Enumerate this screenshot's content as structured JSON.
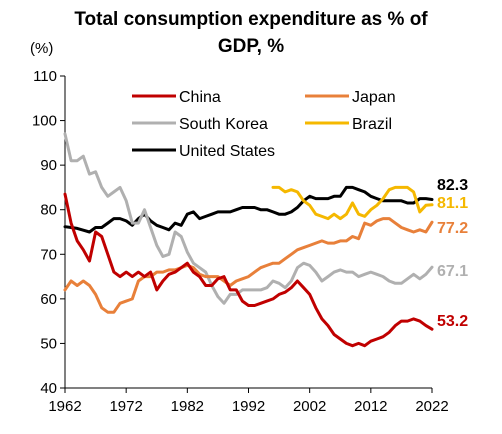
{
  "chart_data": {
    "type": "line",
    "title_lines": [
      "Total consumption expenditure as % of",
      "GDP, %"
    ],
    "ylabel": "(%)",
    "xlabel": "",
    "ylim": [
      40,
      110
    ],
    "xlim": [
      1962,
      2022
    ],
    "x_ticks": [
      "1962",
      "1972",
      "1982",
      "1992",
      "2002",
      "2012",
      "2022"
    ],
    "y_ticks": [
      "40",
      "50",
      "60",
      "70",
      "80",
      "90",
      "100",
      "110"
    ],
    "grid": false,
    "legend": {
      "placement": "top",
      "entries": [
        "China",
        "Japan",
        "South Korea",
        "Brazil",
        "United States"
      ]
    },
    "series": [
      {
        "name": "United States",
        "color": "#000000",
        "end_label": "82.3",
        "x": [
          1962,
          1963,
          1964,
          1965,
          1966,
          1967,
          1968,
          1969,
          1970,
          1971,
          1972,
          1973,
          1974,
          1975,
          1976,
          1977,
          1978,
          1979,
          1980,
          1981,
          1982,
          1983,
          1984,
          1985,
          1986,
          1987,
          1988,
          1989,
          1990,
          1991,
          1992,
          1993,
          1994,
          1995,
          1996,
          1997,
          1998,
          1999,
          2000,
          2001,
          2002,
          2003,
          2004,
          2005,
          2006,
          2007,
          2008,
          2009,
          2010,
          2011,
          2012,
          2013,
          2014,
          2015,
          2016,
          2017,
          2018,
          2019,
          2020,
          2021,
          2022
        ],
        "y": [
          76.2,
          76,
          75.8,
          75.4,
          75,
          76,
          76,
          77,
          78,
          78,
          77.5,
          76.5,
          78,
          79,
          77.5,
          76.5,
          76,
          75.5,
          77,
          76.5,
          79,
          79.5,
          78,
          78.5,
          79,
          79.5,
          79.5,
          79.5,
          80,
          80.5,
          80.5,
          80.5,
          80,
          80,
          79.5,
          79,
          79,
          79.5,
          80.5,
          82,
          83,
          82.5,
          82.5,
          82.5,
          83,
          83,
          85,
          85,
          84.5,
          84,
          83,
          82.5,
          82,
          82,
          82,
          82,
          81.5,
          81.5,
          82.5,
          82.5,
          82.3
        ]
      },
      {
        "name": "South Korea",
        "color": "#b0b0b0",
        "end_label": "67.1",
        "x": [
          1962,
          1963,
          1964,
          1965,
          1966,
          1967,
          1968,
          1969,
          1970,
          1971,
          1972,
          1973,
          1974,
          1975,
          1976,
          1977,
          1978,
          1979,
          1980,
          1981,
          1982,
          1983,
          1984,
          1985,
          1986,
          1987,
          1988,
          1989,
          1990,
          1991,
          1992,
          1993,
          1994,
          1995,
          1996,
          1997,
          1998,
          1999,
          2000,
          2001,
          2002,
          2003,
          2004,
          2005,
          2006,
          2007,
          2008,
          2009,
          2010,
          2011,
          2012,
          2013,
          2014,
          2015,
          2016,
          2017,
          2018,
          2019,
          2020,
          2021,
          2022
        ],
        "y": [
          97,
          91,
          91,
          92,
          88,
          88.5,
          85,
          83,
          84,
          85,
          82,
          77,
          77,
          80,
          76,
          72,
          69.5,
          70,
          75,
          74,
          70.5,
          68,
          67,
          66,
          63,
          60.5,
          59,
          61,
          61,
          62,
          62,
          62,
          62,
          62.5,
          64,
          63.5,
          62.5,
          64,
          67,
          68,
          67.5,
          66,
          64,
          65,
          66,
          66.5,
          66,
          66,
          65,
          65.5,
          66,
          65.5,
          65,
          64,
          63.5,
          63.5,
          64.5,
          65.5,
          64.5,
          65.5,
          67.1
        ]
      },
      {
        "name": "Japan",
        "color": "#e8803a",
        "end_label": "77.2",
        "x": [
          1962,
          1963,
          1964,
          1965,
          1966,
          1967,
          1968,
          1969,
          1970,
          1971,
          1972,
          1973,
          1974,
          1975,
          1976,
          1977,
          1978,
          1979,
          1980,
          1981,
          1982,
          1983,
          1984,
          1985,
          1986,
          1987,
          1988,
          1989,
          1990,
          1991,
          1992,
          1993,
          1994,
          1995,
          1996,
          1997,
          1998,
          1999,
          2000,
          2001,
          2002,
          2003,
          2004,
          2005,
          2006,
          2007,
          2008,
          2009,
          2010,
          2011,
          2012,
          2013,
          2014,
          2015,
          2016,
          2017,
          2018,
          2019,
          2020,
          2021,
          2022
        ],
        "y": [
          62,
          64,
          63,
          64,
          63,
          61,
          58,
          57,
          57,
          59,
          59.5,
          60,
          64,
          65,
          65,
          66,
          66,
          66.5,
          66.5,
          67,
          67.5,
          67,
          65.5,
          65,
          65,
          65,
          64,
          63,
          64,
          64.5,
          65,
          66,
          67,
          67.5,
          68,
          68,
          69,
          70,
          71,
          71.5,
          72,
          72.5,
          73,
          72.5,
          72.5,
          73,
          73,
          74,
          73.5,
          77,
          76.5,
          77.5,
          78,
          78,
          77,
          76,
          75.5,
          75,
          75.5,
          75,
          77.2
        ]
      },
      {
        "name": "Brazil",
        "color": "#f5b800",
        "end_label": "81.1",
        "x": [
          1996,
          1997,
          1998,
          1999,
          2000,
          2001,
          2002,
          2003,
          2004,
          2005,
          2006,
          2007,
          2008,
          2009,
          2010,
          2011,
          2012,
          2013,
          2014,
          2015,
          2016,
          2017,
          2018,
          2019,
          2020,
          2021,
          2022
        ],
        "y": [
          85,
          85,
          84,
          84.5,
          84,
          82,
          81,
          79,
          78.5,
          78,
          79,
          78,
          79,
          81.5,
          79,
          78.5,
          80,
          81,
          82.5,
          84.5,
          85,
          85,
          85,
          84,
          79.5,
          81,
          81.1
        ]
      },
      {
        "name": "China",
        "color": "#c00000",
        "end_label": "53.2",
        "x": [
          1962,
          1963,
          1964,
          1965,
          1966,
          1967,
          1968,
          1969,
          1970,
          1971,
          1972,
          1973,
          1974,
          1975,
          1976,
          1977,
          1978,
          1979,
          1980,
          1981,
          1982,
          1983,
          1984,
          1985,
          1986,
          1987,
          1988,
          1989,
          1990,
          1991,
          1992,
          1993,
          1994,
          1995,
          1996,
          1997,
          1998,
          1999,
          2000,
          2001,
          2002,
          2003,
          2004,
          2005,
          2006,
          2007,
          2008,
          2009,
          2010,
          2011,
          2012,
          2013,
          2014,
          2015,
          2016,
          2017,
          2018,
          2019,
          2020,
          2021,
          2022
        ],
        "y": [
          83.5,
          77,
          73,
          71,
          68.5,
          75,
          74,
          70,
          66,
          65,
          66,
          65,
          66,
          65,
          66,
          62,
          64,
          65.5,
          66,
          67,
          68,
          66,
          65,
          63,
          63,
          64.5,
          65,
          62,
          62,
          59.5,
          58.5,
          58.5,
          59,
          59.5,
          60,
          61,
          61.5,
          62.5,
          64,
          62.5,
          61,
          58,
          55.5,
          54,
          52,
          51,
          50,
          49.5,
          50,
          49.5,
          50.5,
          51,
          51.5,
          52.5,
          54,
          55,
          55,
          55.5,
          55,
          54,
          53.2
        ]
      }
    ]
  }
}
